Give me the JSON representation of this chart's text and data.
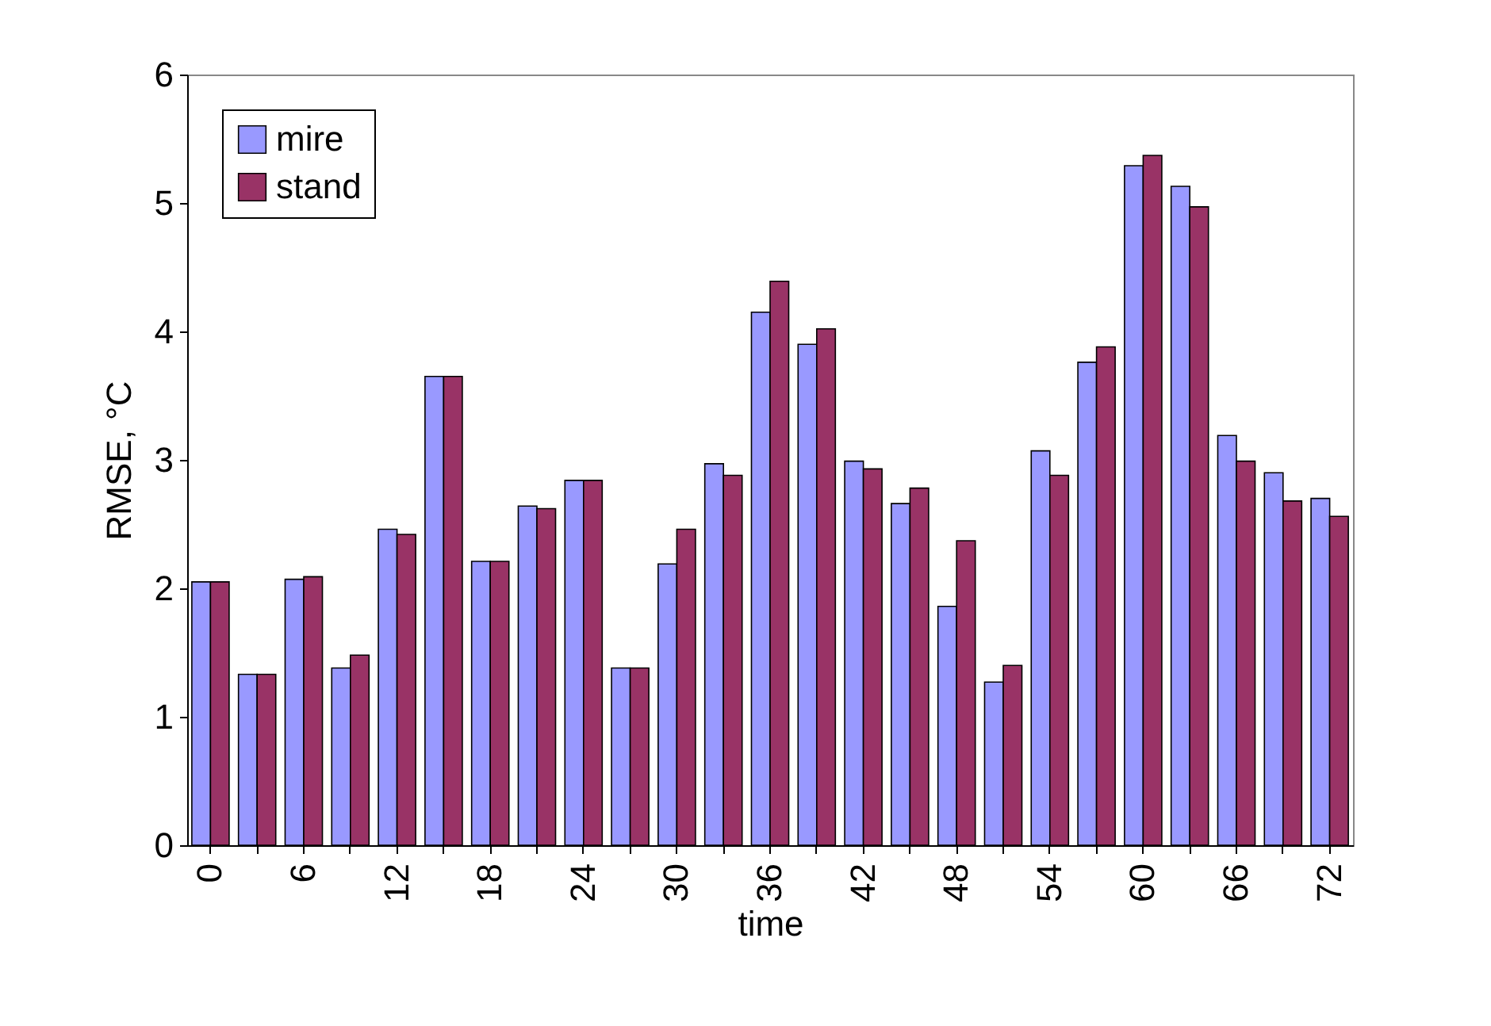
{
  "chart_data": {
    "type": "bar",
    "xlabel": "time",
    "ylabel": "RMSE, °C",
    "categories": [
      "0",
      null,
      "6",
      null,
      "12",
      null,
      "18",
      null,
      "24",
      null,
      "30",
      null,
      "36",
      null,
      "42",
      null,
      "48",
      null,
      "54",
      null,
      "60",
      null,
      "66",
      null,
      "72"
    ],
    "series": [
      {
        "name": "mire",
        "color": "#9999ff",
        "values": [
          2.05,
          1.33,
          2.07,
          1.38,
          2.46,
          3.65,
          2.21,
          2.64,
          2.84,
          1.38,
          2.19,
          2.97,
          4.15,
          3.9,
          2.99,
          2.66,
          1.86,
          1.27,
          3.07,
          3.76,
          5.29,
          5.13,
          3.19,
          2.9,
          2.7
        ]
      },
      {
        "name": "stand",
        "color": "#993366",
        "values": [
          2.05,
          1.33,
          2.09,
          1.48,
          2.42,
          3.65,
          2.21,
          2.62,
          2.84,
          1.38,
          2.46,
          2.88,
          4.39,
          4.02,
          2.93,
          2.78,
          2.37,
          1.4,
          2.88,
          3.88,
          5.37,
          4.97,
          2.99,
          2.68,
          2.56
        ]
      }
    ],
    "ylim": [
      0,
      6
    ],
    "yticks": [
      0,
      1,
      2,
      3,
      4,
      5,
      6
    ],
    "grid": false,
    "legend": "top left"
  }
}
